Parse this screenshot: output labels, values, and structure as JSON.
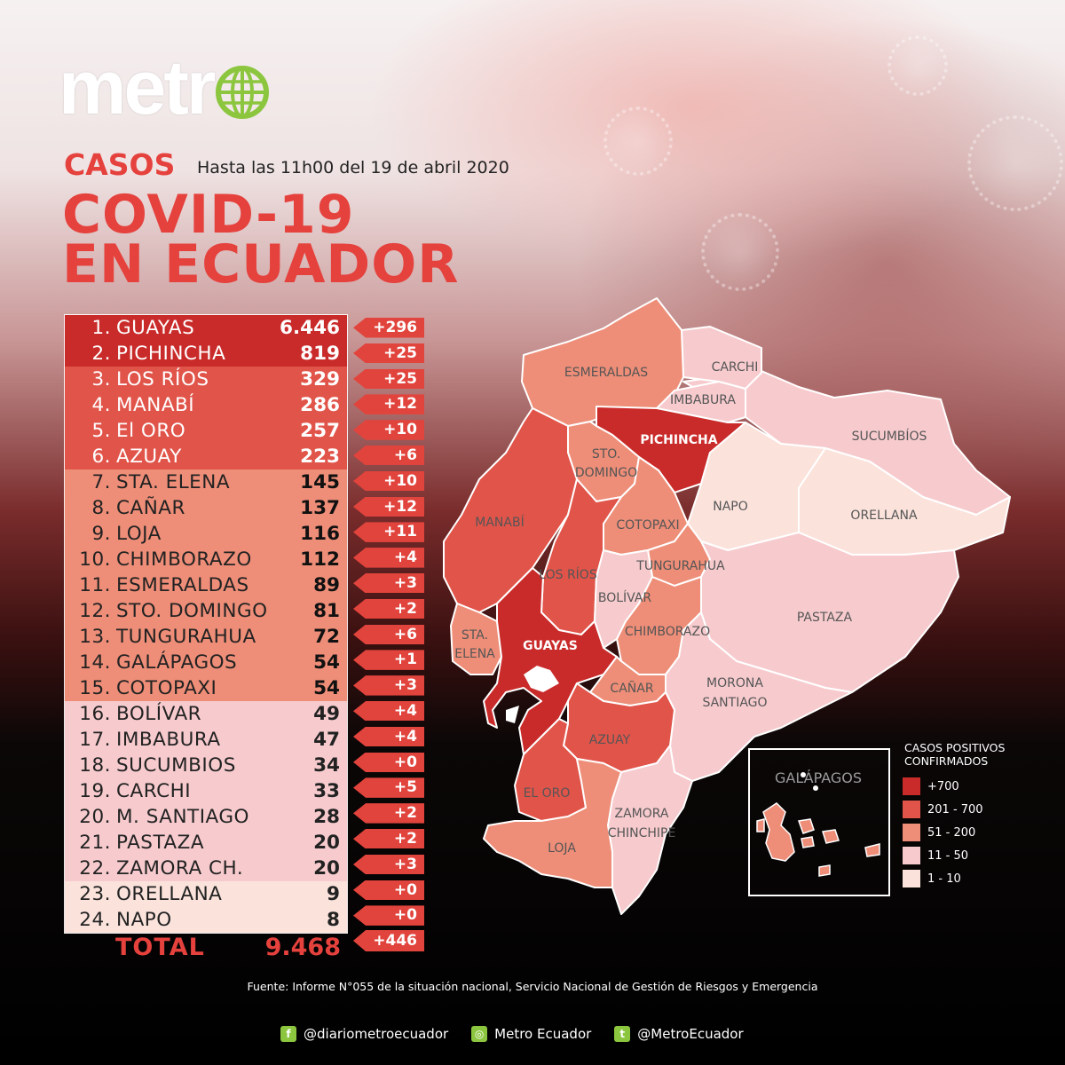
{
  "brand": {
    "logo_text": "metr",
    "logo_icon": "globe-icon",
    "accent": "#e5413d",
    "logo_green": "#8cc63f"
  },
  "header": {
    "kicker": "CASOS",
    "date": "Hasta las 11h00 del 19 de abril 2020",
    "title_line1": "COVID-19",
    "title_line2": "EN ECUADOR"
  },
  "provinces": [
    {
      "n": "1.",
      "name": "GUAYAS",
      "cases": "6.446",
      "inc": "+296",
      "tier": 1
    },
    {
      "n": "2.",
      "name": "PICHINCHA",
      "cases": "819",
      "inc": "+25",
      "tier": 1
    },
    {
      "n": "3.",
      "name": "LOS RÍOS",
      "cases": "329",
      "inc": "+25",
      "tier": 2
    },
    {
      "n": "4.",
      "name": "MANABÍ",
      "cases": "286",
      "inc": "+12",
      "tier": 2
    },
    {
      "n": "5.",
      "name": "El ORO",
      "cases": "257",
      "inc": "+10",
      "tier": 2
    },
    {
      "n": "6.",
      "name": "AZUAY",
      "cases": "223",
      "inc": "+6",
      "tier": 2
    },
    {
      "n": "7.",
      "name": "STA. ELENA",
      "cases": "145",
      "inc": "+10",
      "tier": 3
    },
    {
      "n": "8.",
      "name": "CAÑAR",
      "cases": "137",
      "inc": "+12",
      "tier": 3
    },
    {
      "n": "9.",
      "name": "LOJA",
      "cases": "116",
      "inc": "+11",
      "tier": 3
    },
    {
      "n": "10.",
      "name": "CHIMBORAZO",
      "cases": "112",
      "inc": "+4",
      "tier": 3
    },
    {
      "n": "11.",
      "name": "ESMERALDAS",
      "cases": "89",
      "inc": "+3",
      "tier": 3
    },
    {
      "n": "12.",
      "name": "STO. DOMINGO",
      "cases": "81",
      "inc": "+2",
      "tier": 3
    },
    {
      "n": "13.",
      "name": "TUNGURAHUA",
      "cases": "72",
      "inc": "+6",
      "tier": 3
    },
    {
      "n": "14.",
      "name": "GALÁPAGOS",
      "cases": "54",
      "inc": "+1",
      "tier": 3
    },
    {
      "n": "15.",
      "name": "COTOPAXI",
      "cases": "54",
      "inc": "+3",
      "tier": 3
    },
    {
      "n": "16.",
      "name": "BOLÍVAR",
      "cases": "49",
      "inc": "+4",
      "tier": 4
    },
    {
      "n": "17.",
      "name": "IMBABURA",
      "cases": "47",
      "inc": "+4",
      "tier": 4
    },
    {
      "n": "18.",
      "name": "SUCUMBIOS",
      "cases": "34",
      "inc": "+0",
      "tier": 4
    },
    {
      "n": "19.",
      "name": "CARCHI",
      "cases": "33",
      "inc": "+5",
      "tier": 4
    },
    {
      "n": "20.",
      "name": "M. SANTIAGO",
      "cases": "28",
      "inc": "+2",
      "tier": 4
    },
    {
      "n": "21.",
      "name": "PASTAZA",
      "cases": "20",
      "inc": "+2",
      "tier": 4
    },
    {
      "n": "22.",
      "name": "ZAMORA CH.",
      "cases": "20",
      "inc": "+3",
      "tier": 4
    },
    {
      "n": "23.",
      "name": "ORELLANA",
      "cases": "9",
      "inc": "+0",
      "tier": 5
    },
    {
      "n": "24.",
      "name": "NAPO",
      "cases": "8",
      "inc": "+0",
      "tier": 5
    }
  ],
  "total": {
    "label": "TOTAL",
    "value": "9.468",
    "inc": "+446"
  },
  "map": {
    "labels": {
      "esmeraldas": "ESMERALDAS",
      "carchi": "CARCHI",
      "imbabura": "IMBABURA",
      "sucumbios": "SUCUMBÍOS",
      "pichincha": "PICHINCHA",
      "sto_domingo_1": "STO.",
      "sto_domingo_2": "DOMINGO",
      "napo": "NAPO",
      "orellana": "ORELLANA",
      "manabi": "MANABÍ",
      "cotopaxi": "COTOPAXI",
      "los_rios": "LOS RÍOS",
      "tungurahua": "TUNGURAHUA",
      "bolivar": "BOLÍVAR",
      "pastaza": "PASTAZA",
      "sta_elena_1": "STA.",
      "sta_elena_2": "ELENA",
      "guayas": "GUAYAS",
      "chimborazo": "CHIMBORAZO",
      "morona_1": "MORONA",
      "morona_2": "SANTIAGO",
      "canar": "CAÑAR",
      "azuay": "AZUAY",
      "el_oro": "EL ORO",
      "zamora_1": "ZAMORA",
      "zamora_2": "CHINCHIPE",
      "loja": "LOJA",
      "galapagos": "GALÁPAGOS"
    },
    "tier_colors": {
      "1": "#c92b2a",
      "2": "#e1544a",
      "3": "#ee8e78",
      "4": "#f7cbce",
      "5": "#fbe3dc"
    }
  },
  "legend": {
    "title_line1": "CASOS POSITIVOS",
    "title_line2": "CONFIRMADOS",
    "items": [
      {
        "label": "+700",
        "color": "#c92b2a"
      },
      {
        "label": "201 - 700",
        "color": "#e1544a"
      },
      {
        "label": "51 - 200",
        "color": "#ee8e78"
      },
      {
        "label": "11 - 50",
        "color": "#f7cbce"
      },
      {
        "label": "1 - 10",
        "color": "#fbe3dc"
      }
    ]
  },
  "footer": {
    "source": "Fuente: Informe N°055 de la situación nacional, Servicio Nacional de Gestión de Riesgos y Emergencia",
    "social": [
      {
        "icon": "facebook-icon",
        "glyph": "f",
        "label": "@diariometroecuador"
      },
      {
        "icon": "instagram-icon",
        "glyph": "◎",
        "label": "Metro Ecuador"
      },
      {
        "icon": "twitter-icon",
        "glyph": "t",
        "label": "@MetroEcuador"
      }
    ]
  }
}
